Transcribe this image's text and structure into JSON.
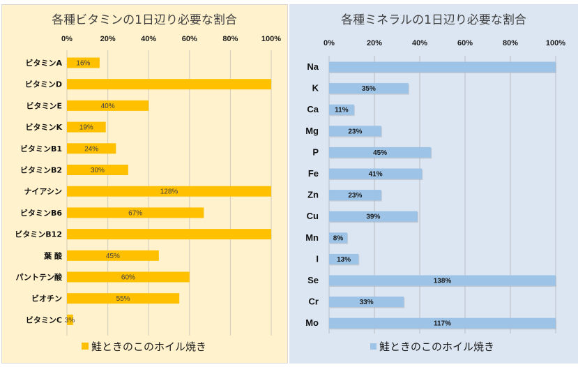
{
  "chart_data": [
    {
      "type": "bar",
      "orientation": "horizontal",
      "title": "各種ビタミンの1日辺り必要な割合",
      "xlabel": "",
      "ylabel": "",
      "xlim": [
        0,
        100
      ],
      "tick_labels": [
        "0%",
        "20%",
        "40%",
        "60%",
        "80%",
        "100%"
      ],
      "grid": true,
      "legend_position": "bottom",
      "color": "#ffc000",
      "categories": [
        "ビタミンA",
        "ビタミンD",
        "ビタミンE",
        "ビタミンK",
        "ビタミンB1",
        "ビタミンB2",
        "ナイアシン",
        "ビタミンB6",
        "ビタミンB12",
        "葉 酸",
        "パントテン酸",
        "ビオチン",
        "ビタミンC"
      ],
      "series": [
        {
          "name": "鮭ときのこのホイル焼き",
          "values": [
            16,
            100,
            40,
            19,
            24,
            30,
            128,
            67,
            100,
            45,
            60,
            55,
            3
          ],
          "data_labels": [
            "16%",
            "",
            "40%",
            "19%",
            "24%",
            "30%",
            "128%",
            "67%",
            "",
            "45%",
            "60%",
            "55%",
            "3%"
          ]
        }
      ]
    },
    {
      "type": "bar",
      "orientation": "horizontal",
      "title": "各種ミネラルの1日辺り必要な割合",
      "xlabel": "",
      "ylabel": "",
      "xlim": [
        0,
        100
      ],
      "tick_labels": [
        "0%",
        "20%",
        "40%",
        "60%",
        "80%",
        "100%"
      ],
      "grid": true,
      "legend_position": "bottom",
      "color": "#9dc3e6",
      "categories": [
        "Na",
        "K",
        "Ca",
        "Mg",
        "P",
        "Fe",
        "Zn",
        "Cu",
        "Mn",
        "I",
        "Se",
        "Cr",
        "Mo"
      ],
      "series": [
        {
          "name": "鮭ときのこのホイル焼き",
          "values": [
            100,
            35,
            11,
            23,
            45,
            41,
            23,
            39,
            8,
            13,
            138,
            33,
            117
          ],
          "data_labels": [
            "",
            "35%",
            "11%",
            "23%",
            "45%",
            "41%",
            "23%",
            "39%",
            "8%",
            "13%",
            "138%",
            "33%",
            "117%"
          ]
        }
      ]
    }
  ]
}
